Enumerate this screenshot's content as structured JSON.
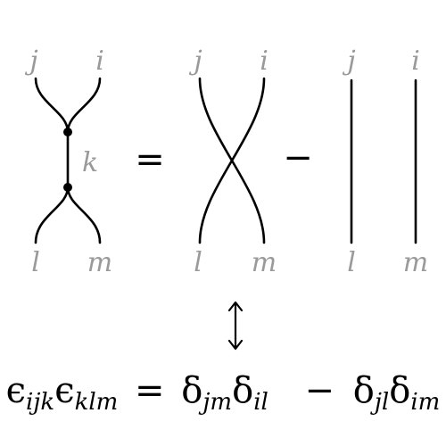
{
  "diagram": {
    "left_term": {
      "top_labels": [
        "j",
        "i"
      ],
      "internal_label": "k",
      "bottom_labels": [
        "l",
        "m"
      ]
    },
    "equals_sign": "=",
    "crossing_term": {
      "top_labels": [
        "j",
        "i"
      ],
      "bottom_labels": [
        "l",
        "m"
      ]
    },
    "minus_sign": "−",
    "parallel_term": {
      "top_labels": [
        "j",
        "i"
      ],
      "bottom_labels": [
        "l",
        "m"
      ]
    },
    "correspondence_icon": "double-headed-vertical-arrow"
  },
  "formula": {
    "lhs": [
      {
        "symbol": "ϵ",
        "subscript": "ijk"
      },
      {
        "symbol": "ϵ",
        "subscript": "klm"
      }
    ],
    "equals": "=",
    "term1": [
      {
        "symbol": "δ",
        "subscript": "jm"
      },
      {
        "symbol": "δ",
        "subscript": "il"
      }
    ],
    "minus": "−",
    "term2": [
      {
        "symbol": "δ",
        "subscript": "jl"
      },
      {
        "symbol": "δ",
        "subscript": "im"
      }
    ]
  }
}
